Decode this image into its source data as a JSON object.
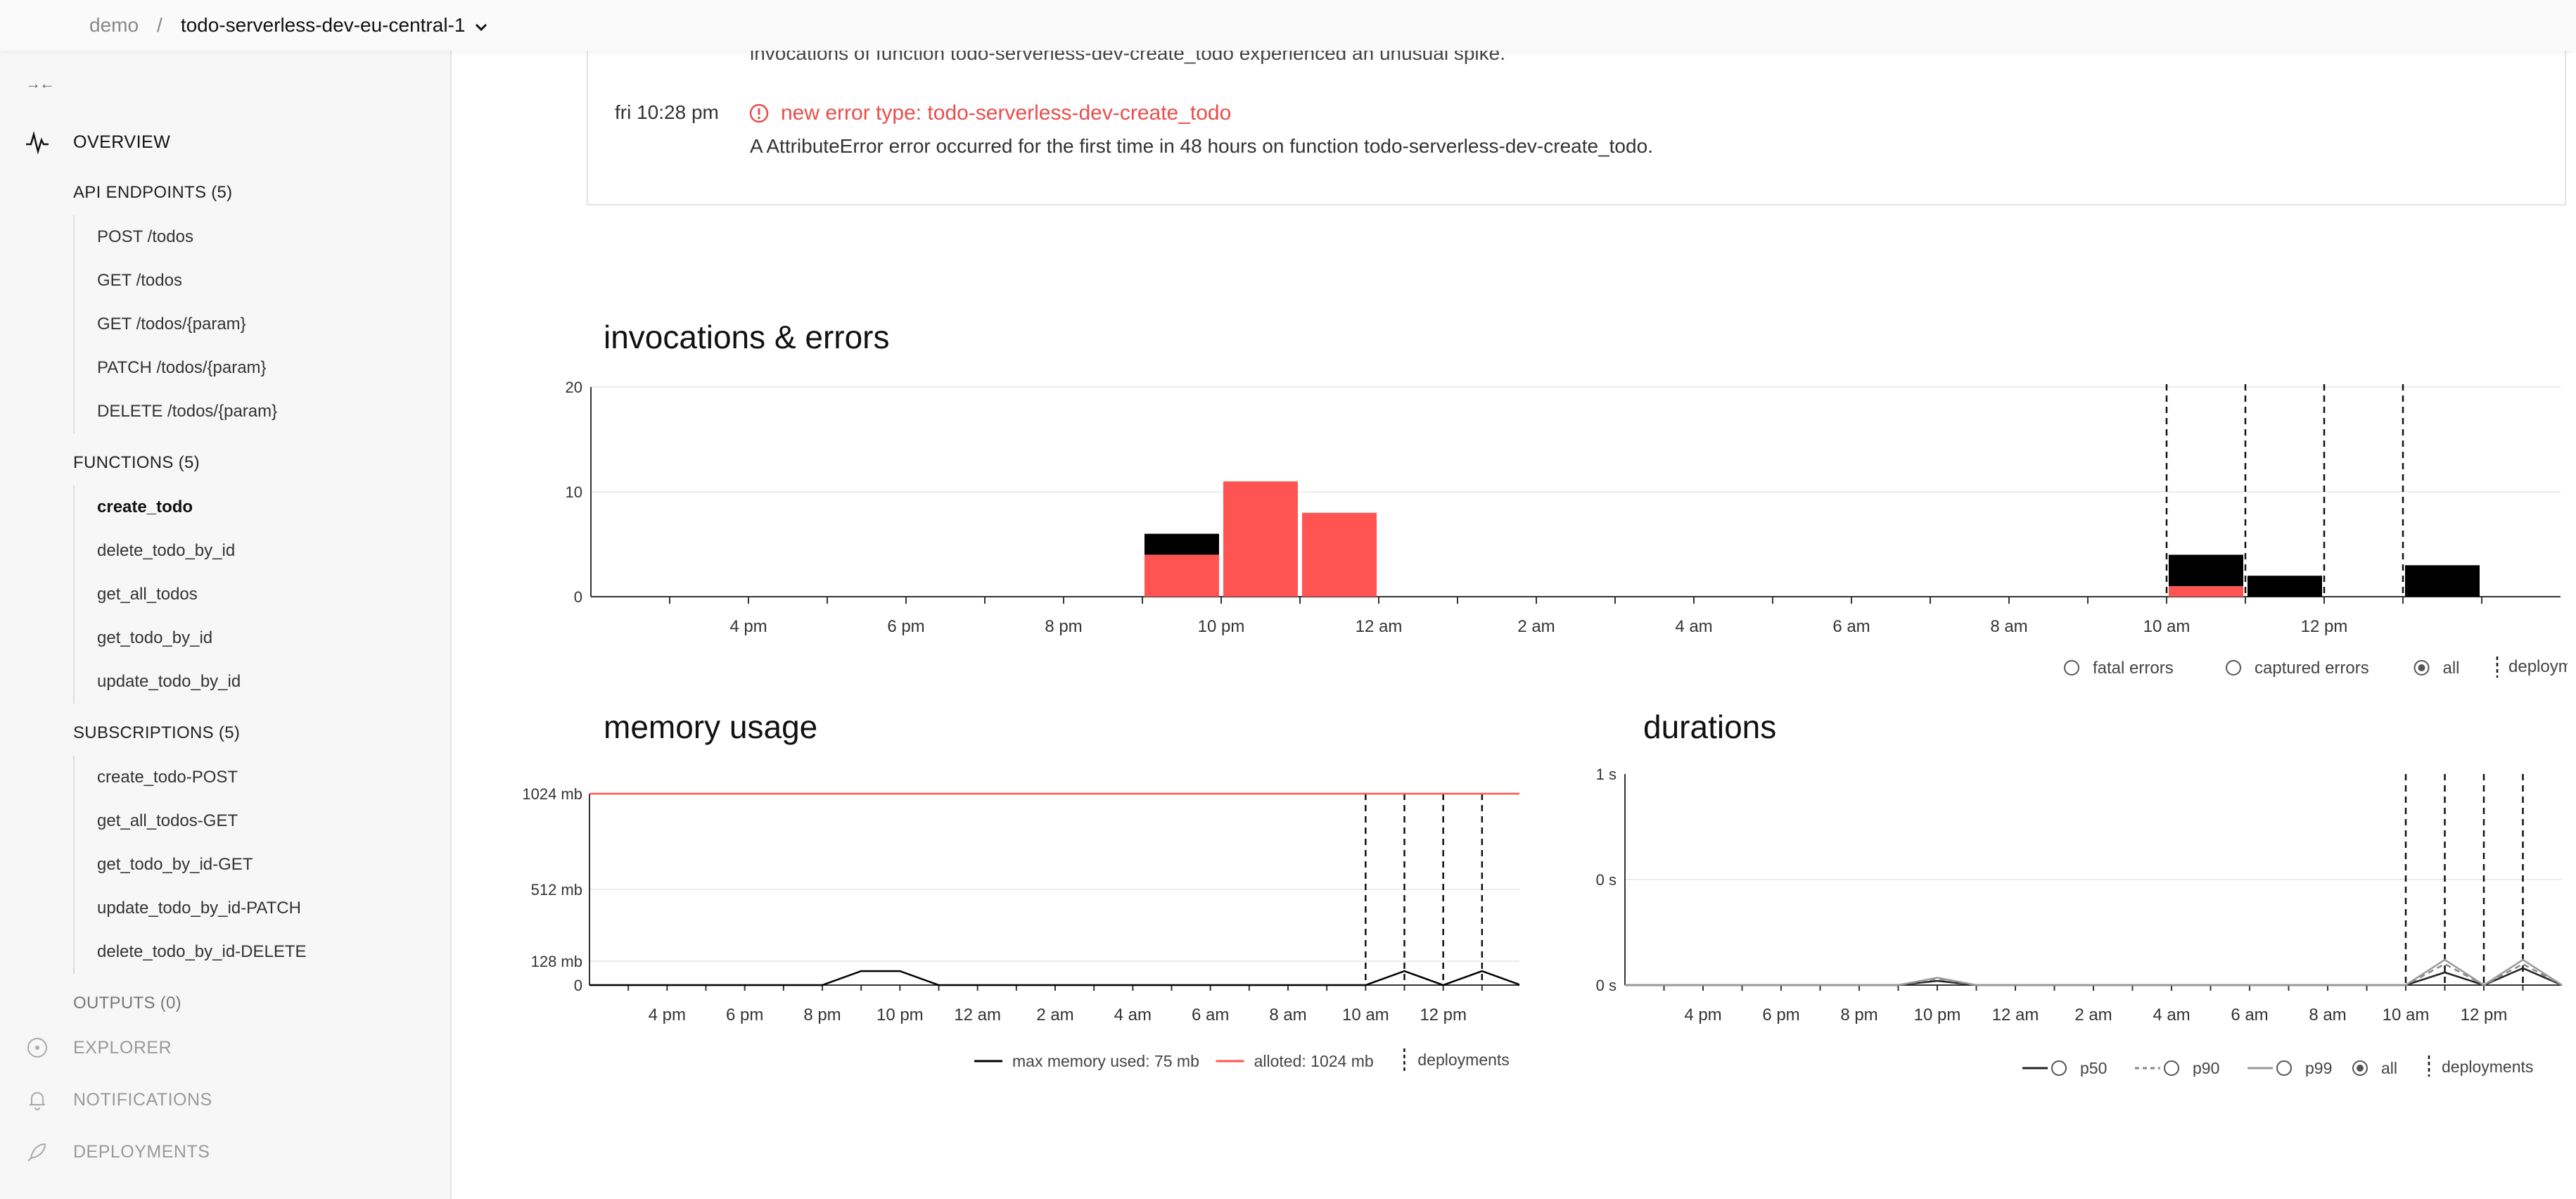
{
  "breadcrumb": {
    "root": "demo",
    "separator": "/",
    "current": "todo-serverless-dev-eu-central-1"
  },
  "sidebar": {
    "collapse_glyph": "→←",
    "overview": "OVERVIEW",
    "api_endpoints": {
      "heading": "API ENDPOINTS (5)",
      "items": [
        "POST /todos",
        "GET /todos",
        "GET /todos/{param}",
        "PATCH /todos/{param}",
        "DELETE /todos/{param}"
      ]
    },
    "functions": {
      "heading": "FUNCTIONS (5)",
      "items": [
        "create_todo",
        "delete_todo_by_id",
        "get_all_todos",
        "get_todo_by_id",
        "update_todo_by_id"
      ],
      "active_index": 0
    },
    "subscriptions": {
      "heading": "SUBSCRIPTIONS (5)",
      "items": [
        "create_todo-POST",
        "get_all_todos-GET",
        "get_todo_by_id-GET",
        "update_todo_by_id-PATCH",
        "delete_todo_by_id-DELETE"
      ]
    },
    "outputs": "OUTPUTS (0)",
    "explorer": "EXPLORER",
    "notifications": "NOTIFICATIONS",
    "deployments": "DEPLOYMENTS"
  },
  "alerts": {
    "partial_text": "invocations of function todo-serverless-dev-create_todo experienced an unusual spike.",
    "items": [
      {
        "time": "fri 10:28 pm",
        "title": "new error type: todo-serverless-dev-create_todo",
        "description": "A AttributeError error occurred for the first time in 48 hours on function todo-serverless-dev-create_todo."
      }
    ]
  },
  "colors": {
    "error": "#ff5451",
    "black": "#000000",
    "axis": "#333333",
    "grid": "#ececec"
  },
  "chart_data": [
    {
      "id": "invocations",
      "type": "bar",
      "title": "invocations & errors",
      "x_ticks": [
        "4 pm",
        "6 pm",
        "8 pm",
        "10 pm",
        "12 am",
        "2 am",
        "4 am",
        "6 am",
        "8 am",
        "10 am",
        "12 pm"
      ],
      "y_ticks": [
        "0",
        "10",
        "20"
      ],
      "ylim": [
        0,
        20
      ],
      "bars": [
        {
          "slot": 7,
          "errors": 4,
          "total": 6
        },
        {
          "slot": 8,
          "errors": 11,
          "total": 11
        },
        {
          "slot": 9,
          "errors": 8,
          "total": 8
        },
        {
          "slot": 20,
          "errors": 1,
          "total": 4
        },
        {
          "slot": 21,
          "errors": 0,
          "total": 2
        },
        {
          "slot": 23,
          "errors": 0,
          "total": 3
        }
      ],
      "deployments_at_slot": [
        20,
        21,
        22,
        23
      ],
      "legend": [
        {
          "label": "fatal errors",
          "selected": false
        },
        {
          "label": "captured errors",
          "selected": false
        },
        {
          "label": "all",
          "selected": true
        }
      ],
      "deployments_label": "deployments"
    },
    {
      "id": "memory",
      "type": "line",
      "title": "memory usage",
      "x_ticks": [
        "4 pm",
        "6 pm",
        "8 pm",
        "10 pm",
        "12 am",
        "2 am",
        "4 am",
        "6 am",
        "8 am",
        "10 am",
        "12 pm"
      ],
      "y_ticks": [
        "0",
        "128 mb",
        "512 mb",
        "1024 mb"
      ],
      "y_tick_values": [
        0,
        128,
        512,
        1024
      ],
      "ylim": [
        0,
        1024
      ],
      "series": [
        {
          "name": "max memory used: 75 mb",
          "color": "#000000",
          "points": [
            [
              0,
              0
            ],
            [
              6,
              0
            ],
            [
              7,
              75
            ],
            [
              8,
              75
            ],
            [
              9,
              0
            ],
            [
              20,
              0
            ],
            [
              21,
              75
            ],
            [
              22,
              0
            ],
            [
              23,
              75
            ],
            [
              24,
              0
            ]
          ]
        },
        {
          "name": "alloted: 1024 mb",
          "color": "#ff5451",
          "points": [
            [
              0,
              1024
            ],
            [
              24,
              1024
            ]
          ]
        }
      ],
      "deployments_at_slot": [
        20,
        21,
        22,
        23
      ],
      "deployments_label": "deployments"
    },
    {
      "id": "durations",
      "type": "line",
      "title": "durations",
      "x_ticks": [
        "4 pm",
        "6 pm",
        "8 pm",
        "10 pm",
        "12 am",
        "2 am",
        "4 am",
        "6 am",
        "8 am",
        "10 am",
        "12 pm"
      ],
      "y_ticks": [
        "0 s",
        "0 s",
        "1 s"
      ],
      "ylim": [
        0,
        1
      ],
      "series": [
        {
          "name": "p50",
          "style": "solid",
          "color": "#222222",
          "points": [
            [
              0,
              0
            ],
            [
              7,
              0
            ],
            [
              8,
              0.02
            ],
            [
              9,
              0
            ],
            [
              20,
              0
            ],
            [
              21,
              0.06
            ],
            [
              22,
              0
            ],
            [
              23,
              0.08
            ],
            [
              24,
              0
            ]
          ]
        },
        {
          "name": "p90",
          "style": "dashed",
          "color": "#888888",
          "points": [
            [
              0,
              0
            ],
            [
              7,
              0
            ],
            [
              8,
              0.03
            ],
            [
              9,
              0
            ],
            [
              20,
              0
            ],
            [
              21,
              0.1
            ],
            [
              22,
              0
            ],
            [
              23,
              0.1
            ],
            [
              24,
              0
            ]
          ]
        },
        {
          "name": "p99",
          "style": "solid",
          "color": "#999999",
          "points": [
            [
              0,
              0
            ],
            [
              7,
              0
            ],
            [
              8,
              0.035
            ],
            [
              9,
              0
            ],
            [
              20,
              0
            ],
            [
              21,
              0.12
            ],
            [
              22,
              0
            ],
            [
              23,
              0.12
            ],
            [
              24,
              0
            ]
          ]
        }
      ],
      "legend": [
        {
          "label": "p50",
          "selected": false
        },
        {
          "label": "p90",
          "selected": false
        },
        {
          "label": "p99",
          "selected": false
        },
        {
          "label": "all",
          "selected": true
        }
      ],
      "deployments_at_slot": [
        20,
        21,
        22,
        23
      ],
      "deployments_label": "deployments"
    }
  ]
}
